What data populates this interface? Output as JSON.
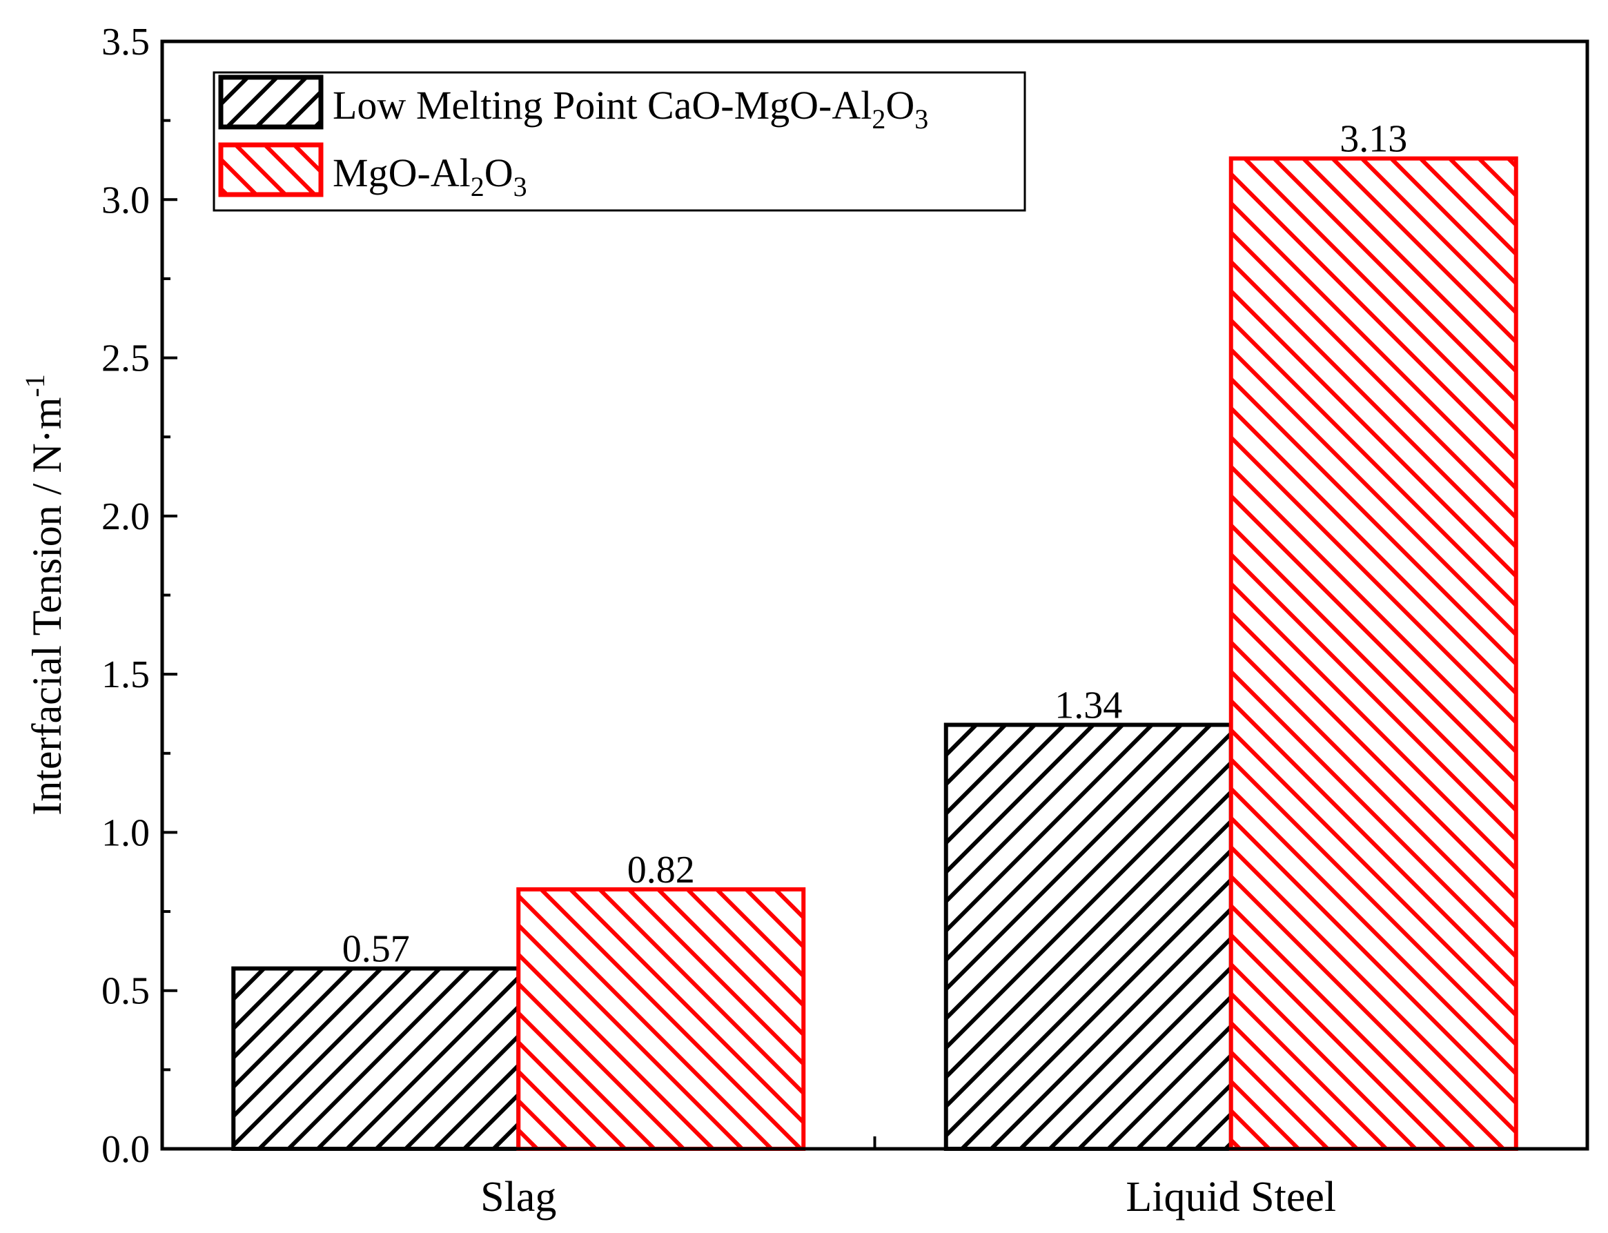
{
  "chart_data": {
    "type": "bar",
    "categories": [
      "Slag",
      "Liquid Steel"
    ],
    "series": [
      {
        "name": "Low Melting Point CaO-MgO-Al2O3",
        "color": "#000000",
        "hatch": "forward-diagonal",
        "values": [
          0.57,
          1.34
        ],
        "labels": [
          "0.57",
          "1.34"
        ]
      },
      {
        "name": "MgO-Al2O3",
        "color": "#ff0000",
        "hatch": "backward-diagonal",
        "values": [
          0.82,
          3.13
        ],
        "labels": [
          "0.82",
          "3.13"
        ]
      }
    ],
    "xlabel": "",
    "ylabel": "Interfacial Tension / N·m",
    "ylabel_sup": "-1",
    "ylim": [
      0,
      3.5
    ],
    "yticks": [
      "0.0",
      "0.5",
      "1.0",
      "1.5",
      "2.0",
      "2.5",
      "3.0",
      "3.5"
    ],
    "grid": false,
    "legend_position": "top-left"
  },
  "legend": {
    "items": [
      {
        "parts": [
          "Low Melting Point CaO-MgO-Al",
          "2",
          "O",
          "3"
        ]
      },
      {
        "parts": [
          "MgO-Al",
          "2",
          "O",
          "3"
        ]
      }
    ]
  }
}
